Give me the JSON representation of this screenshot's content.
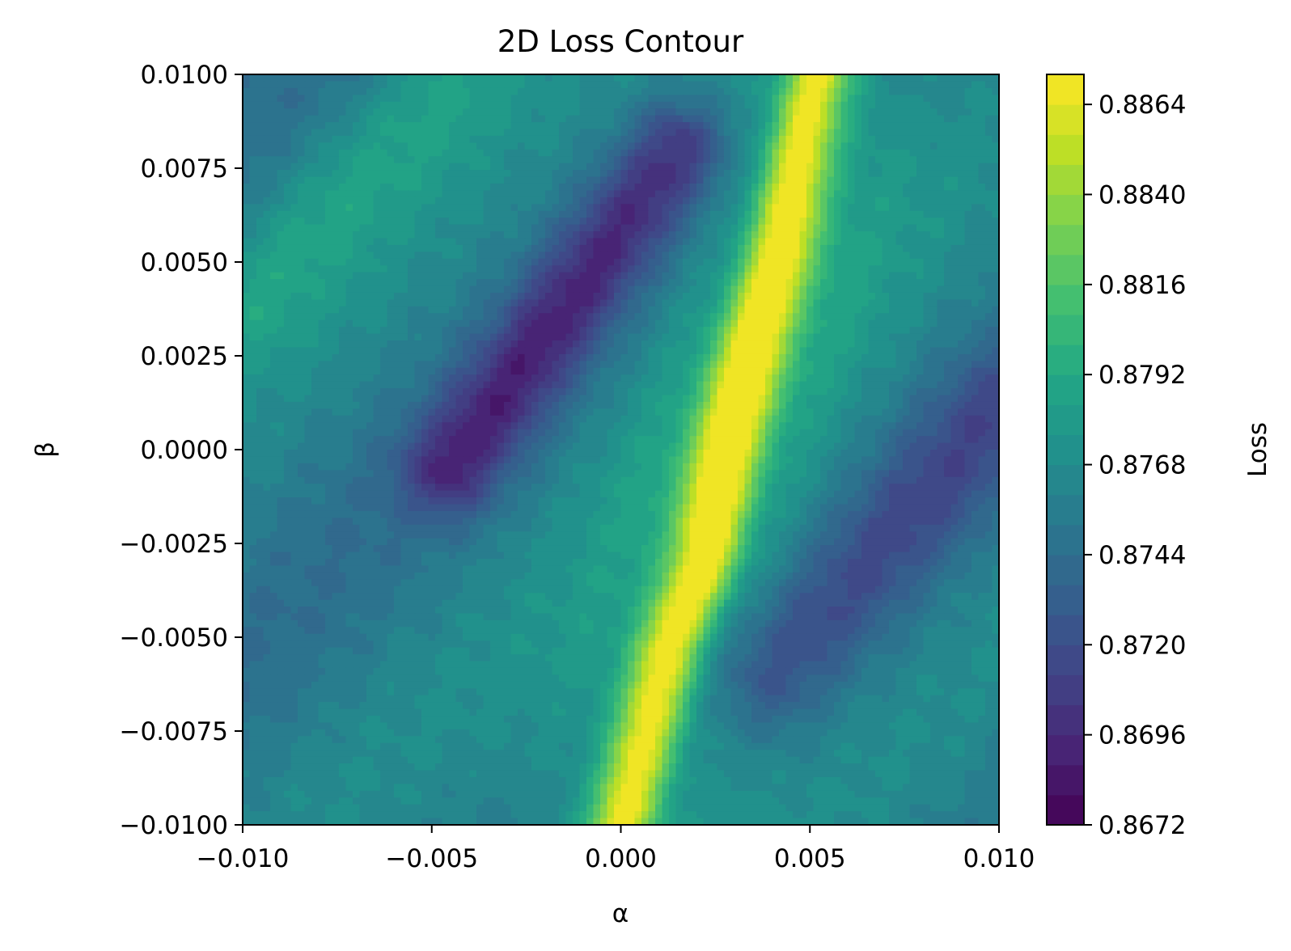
{
  "chart_data": {
    "type": "contour",
    "title": "2D Loss Contour",
    "xlabel": "α",
    "ylabel": "β",
    "xlim": [
      -0.01,
      0.01
    ],
    "ylim": [
      -0.01,
      0.01
    ],
    "xticks": [
      -0.01,
      -0.005,
      0.0,
      0.005,
      0.01
    ],
    "xtick_labels": [
      "−0.010",
      "−0.005",
      "0.000",
      "0.005",
      "0.010"
    ],
    "yticks": [
      -0.01,
      -0.0075,
      -0.005,
      -0.0025,
      0.0,
      0.0025,
      0.005,
      0.0075,
      0.01
    ],
    "ytick_labels": [
      "−0.0100",
      "−0.0075",
      "−0.0050",
      "−0.0025",
      "0.0000",
      "0.0025",
      "0.0050",
      "0.0075",
      "0.0100"
    ],
    "colormap": "viridis",
    "colorbar": {
      "label": "Loss",
      "range": [
        0.8672,
        0.8872
      ],
      "ticks": [
        0.8672,
        0.8696,
        0.872,
        0.8744,
        0.8768,
        0.8792,
        0.8816,
        0.884,
        0.8864
      ],
      "tick_labels": [
        "0.8672",
        "0.8696",
        "0.8720",
        "0.8744",
        "0.8768",
        "0.8792",
        "0.8816",
        "0.8840",
        "0.8864"
      ]
    },
    "grid": false,
    "features": {
      "valley_band": {
        "alpha_start": -0.0045,
        "beta_start": -0.0005,
        "alpha_end": 0.0015,
        "beta_end": 0.008,
        "loss": 0.8705
      },
      "ridge": {
        "points": [
          [
            0.0,
            -0.01
          ],
          [
            0.0013,
            -0.0052
          ],
          [
            0.0022,
            -0.003
          ],
          [
            0.0028,
            0.0
          ],
          [
            0.0035,
            0.0028
          ],
          [
            0.0042,
            0.0052
          ],
          [
            0.0048,
            0.0082
          ],
          [
            0.0052,
            0.01
          ]
        ],
        "peak_loss": 0.8868
      },
      "lower_right_band": {
        "alpha_start": 0.004,
        "beta_start": -0.006,
        "alpha_end": 0.01,
        "beta_end": 0.001,
        "loss": 0.8728
      },
      "upper_left_band": {
        "alpha_start": -0.01,
        "beta_start": 0.004,
        "alpha_end": -0.0045,
        "beta_end": 0.01,
        "loss": 0.8788
      }
    }
  }
}
